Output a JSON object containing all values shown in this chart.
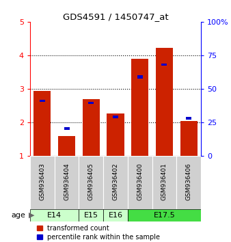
{
  "title": "GDS4591 / 1450747_at",
  "samples": [
    "GSM936403",
    "GSM936404",
    "GSM936405",
    "GSM936402",
    "GSM936400",
    "GSM936401",
    "GSM936406"
  ],
  "red_values": [
    2.95,
    1.6,
    2.7,
    2.27,
    3.9,
    4.22,
    2.05
  ],
  "blue_values": [
    2.65,
    1.82,
    2.58,
    2.17,
    3.35,
    3.73,
    2.13
  ],
  "blue_heights": [
    0.07,
    0.07,
    0.07,
    0.07,
    0.1,
    0.07,
    0.07
  ],
  "ylim_left": [
    1,
    5
  ],
  "ylim_right": [
    0,
    100
  ],
  "yticks_left": [
    1,
    2,
    3,
    4,
    5
  ],
  "yticks_right": [
    0,
    25,
    50,
    75,
    100
  ],
  "age_configs": [
    {
      "label": "E14",
      "xstart": -0.5,
      "xend": 1.5,
      "color": "#ccffcc"
    },
    {
      "label": "E15",
      "xstart": 1.5,
      "xend": 2.5,
      "color": "#ccffcc"
    },
    {
      "label": "E16",
      "xstart": 2.5,
      "xend": 3.5,
      "color": "#ccffcc"
    },
    {
      "label": "E17.5",
      "xstart": 3.5,
      "xend": 6.5,
      "color": "#44dd44"
    }
  ],
  "bar_color_red": "#cc2200",
  "bar_color_blue": "#0000cc",
  "bar_width": 0.7,
  "age_label": "age",
  "legend_labels": [
    "transformed count",
    "percentile rank within the sample"
  ]
}
